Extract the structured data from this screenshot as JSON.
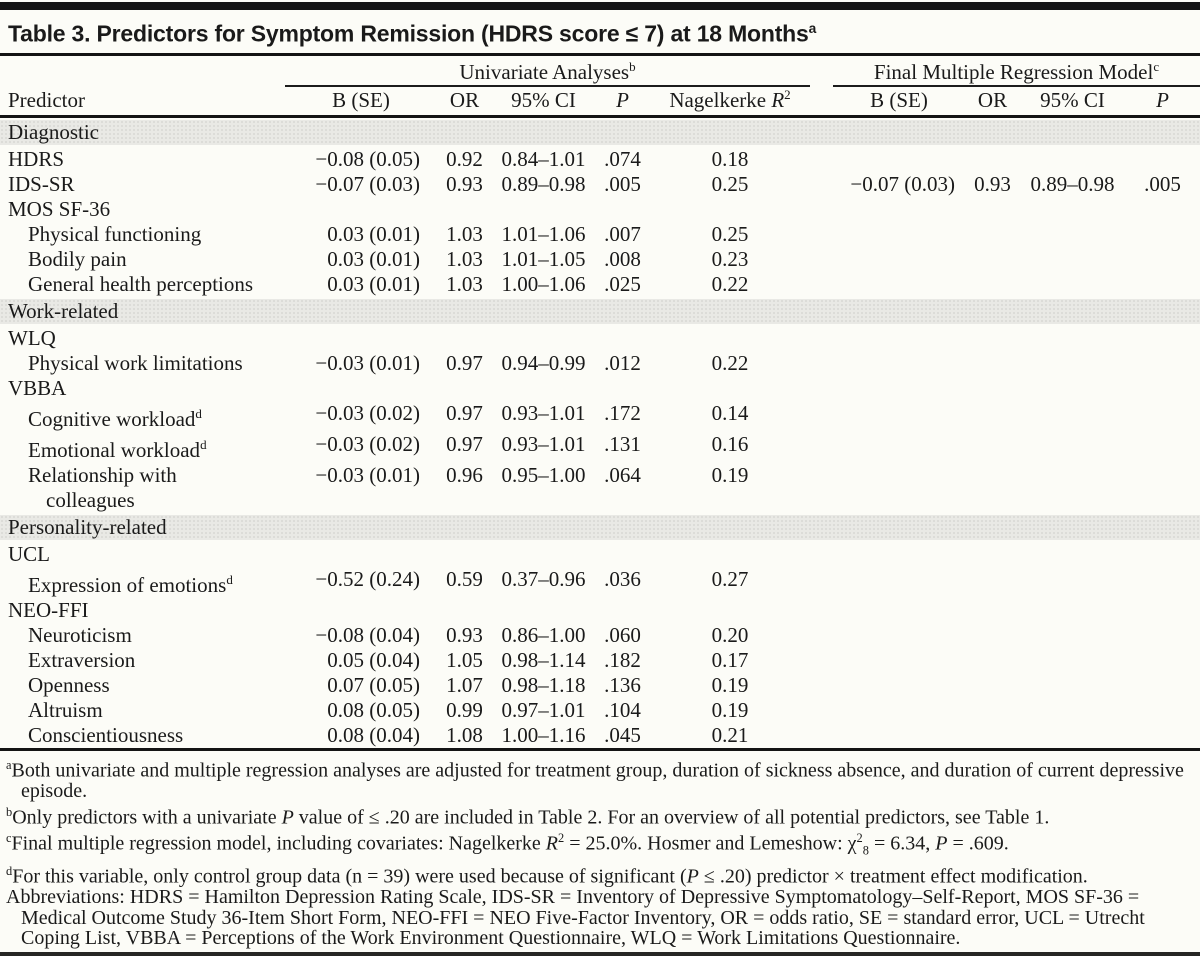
{
  "page": {
    "background": "#fcfcf7",
    "section_band_color": "#e9e9e5",
    "rule_color": "#141414",
    "text_color": "#1a1a1a"
  },
  "title": {
    "text": "Table 3. Predictors for Symptom Remission (HDRS score ≤ 7) at 18 Months",
    "sup": "a"
  },
  "table": {
    "groups": [
      {
        "pre": "Univariate Analyses",
        "sup": "b"
      },
      {
        "pre": "Final Multiple Regression Model",
        "sup": "c"
      }
    ],
    "headers": [
      {
        "pre": "Predictor"
      },
      {
        "pre": "B (SE)"
      },
      {
        "pre": "OR"
      },
      {
        "pre": "95% CI"
      },
      {
        "it": "P"
      },
      {
        "pre": "Nagelkerke ",
        "it": "R",
        "sup": "2"
      },
      {
        "pre": "B (SE)"
      },
      {
        "pre": "OR"
      },
      {
        "pre": "95% CI"
      },
      {
        "it": "P"
      }
    ],
    "rows": [
      {
        "type": "section",
        "label": "Diagnostic"
      },
      {
        "type": "data",
        "indent": 0,
        "label": "HDRS",
        "cells": [
          "−0.08 (0.05)",
          "0.92",
          "0.84–1.01",
          ".074",
          "0.18",
          "",
          "",
          "",
          ""
        ]
      },
      {
        "type": "data",
        "indent": 0,
        "label": "IDS-SR",
        "cells": [
          "−0.07 (0.03)",
          "0.93",
          "0.89–0.98",
          ".005",
          "0.25",
          "−0.07 (0.03)",
          "0.93",
          "0.89–0.98",
          ".005"
        ]
      },
      {
        "type": "data",
        "indent": 0,
        "label": "MOS SF-36",
        "cells": [
          "",
          "",
          "",
          "",
          "",
          "",
          "",
          "",
          ""
        ]
      },
      {
        "type": "data",
        "indent": 1,
        "label": "Physical functioning",
        "cells": [
          "0.03 (0.01)",
          "1.03",
          "1.01–1.06",
          ".007",
          "0.25",
          "",
          "",
          "",
          ""
        ]
      },
      {
        "type": "data",
        "indent": 1,
        "label": "Bodily pain",
        "cells": [
          "0.03 (0.01)",
          "1.03",
          "1.01–1.05",
          ".008",
          "0.23",
          "",
          "",
          "",
          ""
        ]
      },
      {
        "type": "data",
        "indent": 1,
        "label": "General health perceptions",
        "cells": [
          "0.03 (0.01)",
          "1.03",
          "1.00–1.06",
          ".025",
          "0.22",
          "",
          "",
          "",
          ""
        ]
      },
      {
        "type": "section",
        "label": "Work-related"
      },
      {
        "type": "data",
        "indent": 0,
        "label": "WLQ",
        "cells": [
          "",
          "",
          "",
          "",
          "",
          "",
          "",
          "",
          ""
        ]
      },
      {
        "type": "data",
        "indent": 1,
        "label": "Physical work limitations",
        "cells": [
          "−0.03 (0.01)",
          "0.97",
          "0.94–0.99",
          ".012",
          "0.22",
          "",
          "",
          "",
          ""
        ]
      },
      {
        "type": "data",
        "indent": 0,
        "label": "VBBA",
        "cells": [
          "",
          "",
          "",
          "",
          "",
          "",
          "",
          "",
          ""
        ]
      },
      {
        "type": "data",
        "indent": 1,
        "label": "Cognitive workload",
        "label_sup": "d",
        "cells": [
          "−0.03 (0.02)",
          "0.97",
          "0.93–1.01",
          ".172",
          "0.14",
          "",
          "",
          "",
          ""
        ]
      },
      {
        "type": "data",
        "indent": 1,
        "label": "Emotional workload",
        "label_sup": "d",
        "cells": [
          "−0.03 (0.02)",
          "0.97",
          "0.93–1.01",
          ".131",
          "0.16",
          "",
          "",
          "",
          ""
        ]
      },
      {
        "type": "data",
        "indent": 1,
        "label": "Relationship with",
        "label2": "colleagues",
        "cells": [
          "−0.03 (0.01)",
          "0.96",
          "0.95–1.00",
          ".064",
          "0.19",
          "",
          "",
          "",
          ""
        ]
      },
      {
        "type": "section",
        "label": "Personality-related"
      },
      {
        "type": "data",
        "indent": 0,
        "label": "UCL",
        "cells": [
          "",
          "",
          "",
          "",
          "",
          "",
          "",
          "",
          ""
        ]
      },
      {
        "type": "data",
        "indent": 1,
        "label": "Expression of emotions",
        "label_sup": "d",
        "cells": [
          "−0.52 (0.24)",
          "0.59",
          "0.37–0.96",
          ".036",
          "0.27",
          "",
          "",
          "",
          ""
        ]
      },
      {
        "type": "data",
        "indent": 0,
        "label": "NEO-FFI",
        "cells": [
          "",
          "",
          "",
          "",
          "",
          "",
          "",
          "",
          ""
        ]
      },
      {
        "type": "data",
        "indent": 1,
        "label": "Neuroticism",
        "cells": [
          "−0.08 (0.04)",
          "0.93",
          "0.86–1.00",
          ".060",
          "0.20",
          "",
          "",
          "",
          ""
        ]
      },
      {
        "type": "data",
        "indent": 1,
        "label": "Extraversion",
        "cells": [
          "0.05 (0.04)",
          "1.05",
          "0.98–1.14",
          ".182",
          "0.17",
          "",
          "",
          "",
          ""
        ]
      },
      {
        "type": "data",
        "indent": 1,
        "label": "Openness",
        "cells": [
          "0.07 (0.05)",
          "1.07",
          "0.98–1.18",
          ".136",
          "0.19",
          "",
          "",
          "",
          ""
        ]
      },
      {
        "type": "data",
        "indent": 1,
        "label": "Altruism",
        "cells": [
          "0.08 (0.05)",
          "0.99",
          "0.97–1.01",
          ".104",
          "0.19",
          "",
          "",
          "",
          ""
        ]
      },
      {
        "type": "data",
        "indent": 1,
        "label": "Conscientiousness",
        "cells": [
          "0.08 (0.04)",
          "1.08",
          "1.00–1.16",
          ".045",
          "0.21",
          "",
          "",
          "",
          ""
        ]
      }
    ]
  },
  "footnotes": [
    {
      "sup": "a",
      "segments": [
        {
          "t": "Both univariate and multiple regression analyses are adjusted for treatment group, duration of sickness absence, and duration of current depressive episode."
        }
      ]
    },
    {
      "sup": "b",
      "segments": [
        {
          "t": "Only predictors with a univariate "
        },
        {
          "t": "P",
          "i": true
        },
        {
          "t": " value of ≤ .20 are included in Table 2. For an overview of all potential predictors, see Table 1."
        }
      ]
    },
    {
      "sup": "c",
      "segments": [
        {
          "t": "Final multiple regression model, including covariates: Nagelkerke "
        },
        {
          "t": "R",
          "i": true
        },
        {
          "t": "2",
          "sup": true
        },
        {
          "t": " = 25.0%. Hosmer and Lemeshow: χ"
        },
        {
          "t": "2",
          "sup": true
        },
        {
          "t": "8",
          "sub": true
        },
        {
          "t": " = 6.34, "
        },
        {
          "t": "P",
          "i": true
        },
        {
          "t": " = .609."
        }
      ]
    },
    {
      "sup": "d",
      "segments": [
        {
          "t": "For this variable, only control group data (n = 39) were used because of significant ("
        },
        {
          "t": "P",
          "i": true
        },
        {
          "t": " ≤ .20) predictor × treatment effect modification."
        }
      ]
    },
    {
      "sup": "",
      "segments": [
        {
          "t": "Abbreviations: HDRS = Hamilton Depression Rating Scale, IDS-SR = Inventory of Depressive Symptomatology–Self-Report, MOS SF-36 = Medical Outcome Study 36-Item Short Form, NEO-FFI = NEO Five-Factor Inventory, OR = odds ratio, SE = standard error, UCL = Utrecht Coping List, VBBA = Perceptions of the Work Environment Questionnaire, WLQ = Work Limitations Questionnaire."
        }
      ]
    }
  ]
}
